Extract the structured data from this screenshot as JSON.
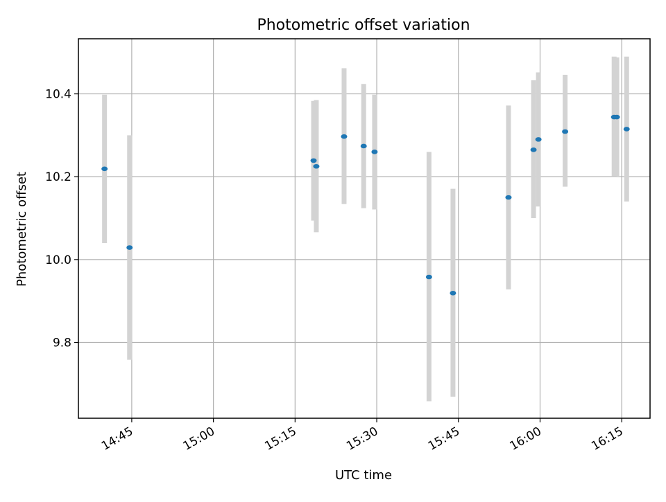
{
  "chart_data": {
    "type": "scatter",
    "title": "Photometric offset variation",
    "xlabel": "UTC time",
    "ylabel": "Photometric offset",
    "x_tick_labels": [
      "14:45",
      "15:00",
      "15:15",
      "15:30",
      "15:45",
      "16:00",
      "16:15"
    ],
    "x_tick_minutes": [
      885,
      900,
      915,
      930,
      945,
      960,
      975
    ],
    "y_tick_values": [
      9.8,
      10.0,
      10.2,
      10.4
    ],
    "y_tick_labels": [
      "9.8",
      "10.0",
      "10.2",
      "10.4"
    ],
    "xlim": [
      "14:35:12",
      "16:20:12"
    ],
    "ylim": [
      9.617,
      10.533
    ],
    "grid": true,
    "marker_color": "#1f77b4",
    "errorbar_color": "#d3d3d3",
    "points": [
      {
        "time": "14:40:00",
        "y": 10.219,
        "ylow": 10.04,
        "yhigh": 10.398
      },
      {
        "time": "14:44:36",
        "y": 10.029,
        "ylow": 9.758,
        "yhigh": 10.3
      },
      {
        "time": "15:18:24",
        "y": 10.239,
        "ylow": 10.094,
        "yhigh": 10.383
      },
      {
        "time": "15:18:54",
        "y": 10.225,
        "ylow": 10.066,
        "yhigh": 10.385
      },
      {
        "time": "15:24:00",
        "y": 10.297,
        "ylow": 10.134,
        "yhigh": 10.462
      },
      {
        "time": "15:27:36",
        "y": 10.274,
        "ylow": 10.124,
        "yhigh": 10.424
      },
      {
        "time": "15:29:36",
        "y": 10.26,
        "ylow": 10.121,
        "yhigh": 10.398
      },
      {
        "time": "15:39:36",
        "y": 9.958,
        "ylow": 9.658,
        "yhigh": 10.26
      },
      {
        "time": "15:44:00",
        "y": 9.919,
        "ylow": 9.669,
        "yhigh": 10.171
      },
      {
        "time": "15:54:12",
        "y": 10.15,
        "ylow": 9.928,
        "yhigh": 10.372
      },
      {
        "time": "15:58:48",
        "y": 10.265,
        "ylow": 10.1,
        "yhigh": 10.433
      },
      {
        "time": "15:59:42",
        "y": 10.29,
        "ylow": 10.128,
        "yhigh": 10.452
      },
      {
        "time": "16:04:36",
        "y": 10.309,
        "ylow": 10.176,
        "yhigh": 10.446
      },
      {
        "time": "16:13:36",
        "y": 10.344,
        "ylow": 10.2,
        "yhigh": 10.49
      },
      {
        "time": "16:14:06",
        "y": 10.344,
        "ylow": 10.202,
        "yhigh": 10.488
      },
      {
        "time": "16:15:54",
        "y": 10.315,
        "ylow": 10.14,
        "yhigh": 10.49
      }
    ]
  }
}
